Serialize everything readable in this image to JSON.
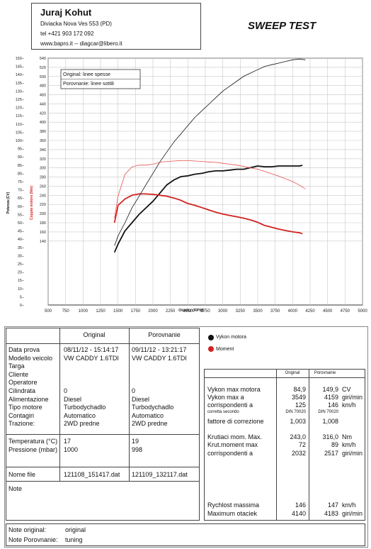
{
  "header": {
    "name": "Juraj Kohut",
    "address": "Diviacka Nova Ves 553 (PD)",
    "phone": "tel +421 903 172 092",
    "web": "www.bapro.it  -- diagcar@libero.it",
    "test_title": "SWEEP TEST"
  },
  "chart_data": {
    "type": "line",
    "xlabel": "Otacky (RPM)",
    "ylabel_left": "Potenza (CV)",
    "ylabel_right": "Coppia motore (Nm)",
    "x_ticks": [
      500,
      750,
      1000,
      1250,
      1500,
      1750,
      2000,
      2250,
      2500,
      2750,
      3000,
      3250,
      3500,
      3750,
      4000,
      4250,
      4500,
      4750,
      5000
    ],
    "xlim": [
      500,
      5000
    ],
    "y_left_ticks": [
      0,
      5,
      10,
      15,
      20,
      25,
      30,
      35,
      40,
      45,
      50,
      55,
      60,
      65,
      70,
      75,
      80,
      85,
      90,
      95,
      100,
      105,
      110,
      115,
      120,
      125,
      130,
      135,
      140,
      145,
      150
    ],
    "y_left_lim": [
      0,
      150
    ],
    "y_right_ticks": [
      140,
      160,
      180,
      200,
      220,
      240,
      260,
      280,
      300,
      320,
      340,
      360,
      380,
      400,
      420,
      440,
      460,
      480,
      500,
      520,
      540
    ],
    "y_right_lim": [
      0,
      540
    ],
    "legend_box": [
      "Original: linee spesse",
      "Porovnanie: linee sottili"
    ],
    "series": [
      {
        "name": "Vykon motora",
        "axis": "left",
        "style": "thick",
        "color": "#111111",
        "x": [
          1450,
          1500,
          1600,
          1700,
          1800,
          1900,
          2000,
          2100,
          2200,
          2300,
          2400,
          2500,
          2600,
          2700,
          2800,
          2900,
          3000,
          3100,
          3200,
          3300,
          3400,
          3500,
          3600,
          3700,
          3800,
          3900,
          4000,
          4100,
          4140
        ],
        "y": [
          32,
          37,
          45,
          50,
          55,
          59,
          63,
          68,
          73,
          76,
          78,
          78.5,
          79.5,
          80,
          81,
          81.5,
          81.5,
          82,
          82.5,
          82.5,
          83.5,
          84.5,
          84,
          84,
          84.5,
          84.5,
          84.5,
          84.5,
          84.9
        ]
      },
      {
        "name": "Moment",
        "axis": "right",
        "style": "thick",
        "color": "#d32020",
        "x": [
          1450,
          1500,
          1600,
          1700,
          1800,
          1900,
          2000,
          2100,
          2200,
          2300,
          2400,
          2500,
          2600,
          2700,
          2800,
          2900,
          3000,
          3100,
          3200,
          3300,
          3400,
          3500,
          3600,
          3700,
          3800,
          3900,
          4000,
          4100,
          4140
        ],
        "y": [
          180,
          218,
          232,
          240,
          243,
          243,
          242,
          240,
          238,
          234,
          229,
          222,
          218,
          213,
          208,
          203,
          199,
          196,
          193,
          190,
          186,
          181,
          174,
          170,
          166,
          163,
          160,
          158,
          156
        ]
      },
      {
        "name": "Vykon motora (Porovnanie)",
        "axis": "left",
        "style": "thin",
        "color": "#111111",
        "x": [
          1450,
          1500,
          1600,
          1700,
          1800,
          1900,
          2000,
          2100,
          2200,
          2300,
          2400,
          2500,
          2600,
          2700,
          2800,
          2900,
          3000,
          3100,
          3200,
          3300,
          3400,
          3500,
          3600,
          3700,
          3800,
          3900,
          4000,
          4100,
          4183
        ],
        "y": [
          36,
          42,
          50,
          59,
          66,
          73,
          80,
          87,
          93,
          99,
          104,
          109,
          114,
          118,
          122,
          126,
          130,
          133,
          136,
          139,
          141,
          143,
          145,
          146,
          147,
          148,
          149,
          149.5,
          149
        ]
      },
      {
        "name": "Moment (Porovnanie)",
        "axis": "right",
        "style": "thin",
        "color": "#e85050",
        "x": [
          1450,
          1500,
          1600,
          1700,
          1800,
          1900,
          2000,
          2100,
          2200,
          2300,
          2400,
          2500,
          2600,
          2700,
          2800,
          2900,
          3000,
          3100,
          3200,
          3300,
          3400,
          3500,
          3600,
          3700,
          3800,
          3900,
          4000,
          4100,
          4183
        ],
        "y": [
          190,
          238,
          286,
          302,
          306,
          306,
          308,
          312,
          314,
          315,
          316,
          316,
          315,
          314,
          313,
          312,
          310,
          308,
          306,
          303,
          300,
          297,
          292,
          287,
          282,
          276,
          270,
          262,
          254
        ]
      }
    ]
  },
  "table": {
    "col_original": "Original",
    "col_porovnanie": "Porovnanie",
    "rows1_labels": [
      "Data prova",
      "Modello veicolo",
      "Targa",
      "Cliente",
      "Operatore",
      "Cilindrata",
      "Alimentazione",
      "Tipo motore",
      "Contagiri",
      "Trazione:"
    ],
    "rows1_original": [
      "08/11/12 - 15:14:17",
      "VW CADDY 1.6TDI",
      "",
      "",
      "",
      "0",
      "Diesel",
      "Turbodychadlo",
      "Automatico",
      "2WD predne"
    ],
    "rows1_porovnanie": [
      "09/11/12 - 13:21:17",
      "VW CADDY 1.6TDI",
      "",
      "",
      "",
      "0",
      "Diesel",
      "Turbodychadlo",
      "Automatico",
      "2WD predne"
    ],
    "rows2_labels": [
      "Temperatura (°C)",
      "Pressione (mbar)"
    ],
    "rows2_original": [
      "17",
      "1000"
    ],
    "rows2_porovnanie": [
      "19",
      "998"
    ],
    "file_label": "Nome file",
    "file_original": "121108_151417.dat",
    "file_porovnanie": "121109_132117.dat",
    "note_label": "Note",
    "note_original_label": "Note original:",
    "note_original_value": "original",
    "note_porovnanie_label": "Note Porovnanie:",
    "note_porovnanie_value": "tuning"
  },
  "legend": {
    "power_label": "Vykon motora",
    "torque_label": "Moment",
    "power_color": "#111111",
    "torque_color": "#d32020"
  },
  "results": {
    "col_original": "Original",
    "col_porovnanie": "Porovnanie",
    "rows": [
      {
        "label": "Vykon max motora",
        "orig": "84,9",
        "porov": "149,9",
        "unit": "CV"
      },
      {
        "label": "Vykon max a",
        "orig": "3549",
        "porov": "4159",
        "unit": "giri/min"
      },
      {
        "label": "corrispondenti a",
        "orig": "125",
        "porov": "146",
        "unit": "km/h"
      },
      {
        "label": "corretta secondo",
        "orig": "DIN 70020",
        "porov": "DIN 70020",
        "unit": "",
        "small": true
      },
      {
        "label": "fattore di correzione",
        "orig": "1,003",
        "porov": "1,008",
        "unit": ""
      },
      {
        "label": "",
        "orig": "",
        "porov": "",
        "unit": ""
      },
      {
        "label": "Krutiaci mom. Max.",
        "orig": "243,0",
        "porov": "316,0",
        "unit": "Nm"
      },
      {
        "label": "Krut.moment max",
        "orig": "72",
        "porov": "89",
        "unit": "km/h"
      },
      {
        "label": "corrispondenti a",
        "orig": "2032",
        "porov": "2517",
        "unit": "giri/min"
      }
    ],
    "bottom_rows": [
      {
        "label": "Rychlost massima",
        "orig": "146",
        "porov": "147",
        "unit": "km/h"
      },
      {
        "label": "Maximum otaciek",
        "orig": "4140",
        "porov": "4183",
        "unit": "giri/min"
      }
    ]
  }
}
